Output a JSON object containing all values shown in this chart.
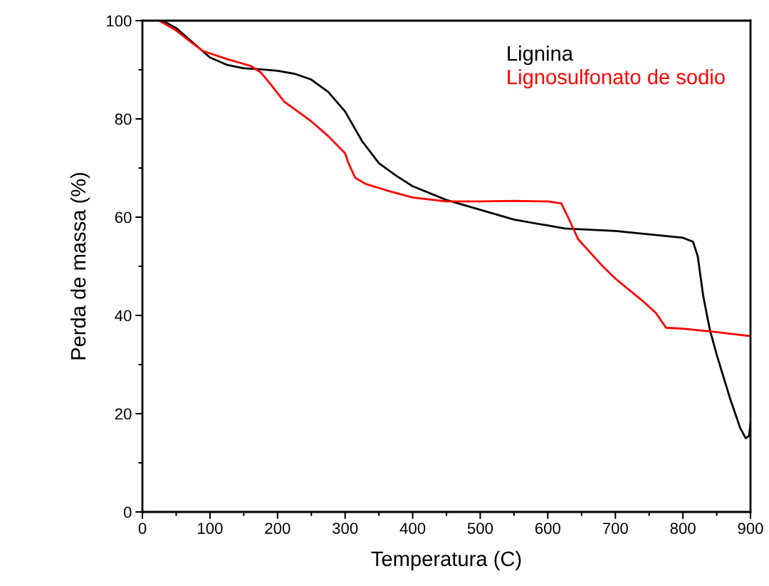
{
  "chart_data": {
    "type": "line",
    "xlabel": "Temperatura (C)",
    "ylabel": "Perda de massa (%)",
    "xlim": [
      0,
      900
    ],
    "xticks": [
      0,
      100,
      200,
      300,
      400,
      500,
      600,
      700,
      800,
      900
    ],
    "ylim": [
      0,
      100
    ],
    "yticks": [
      0,
      20,
      40,
      60,
      80,
      100
    ],
    "grid": false,
    "legend": "top right",
    "marker": "none",
    "line_style": "solid",
    "series": [
      {
        "name": "Lignina",
        "color": "#000000",
        "x": [
          30,
          50,
          75,
          100,
          125,
          150,
          175,
          200,
          225,
          250,
          275,
          300,
          325,
          350,
          375,
          400,
          450,
          500,
          550,
          600,
          625,
          700,
          750,
          800,
          815,
          822,
          830,
          840,
          850,
          870,
          885,
          893,
          898,
          900
        ],
        "values": [
          100,
          98.5,
          95.5,
          92.5,
          91,
          90.3,
          90.1,
          89.8,
          89.2,
          88,
          85.5,
          81.5,
          75.5,
          71,
          68.5,
          66.3,
          63.5,
          61.5,
          59.5,
          58.3,
          57.7,
          57.2,
          56.5,
          55.8,
          55,
          52,
          44,
          37,
          32,
          23,
          17,
          15,
          15.5,
          18
        ]
      },
      {
        "name": "Lignosulfonato de sodio",
        "color": "#ff0000",
        "x": [
          25,
          50,
          75,
          90,
          125,
          160,
          175,
          190,
          210,
          225,
          250,
          275,
          300,
          305,
          315,
          330,
          360,
          400,
          450,
          500,
          550,
          600,
          620,
          630,
          645,
          680,
          700,
          740,
          760,
          770,
          775,
          800,
          850,
          900
        ],
        "values": [
          100,
          98,
          95.3,
          93.8,
          92.2,
          90.8,
          89.5,
          87,
          83.5,
          82,
          79.5,
          76.5,
          73,
          71,
          68,
          66.8,
          65.5,
          64,
          63.2,
          63.2,
          63.3,
          63.2,
          62.8,
          60,
          55.5,
          50.2,
          47.5,
          43,
          40.5,
          38.5,
          37.5,
          37.3,
          36.6,
          35.8
        ]
      }
    ]
  }
}
